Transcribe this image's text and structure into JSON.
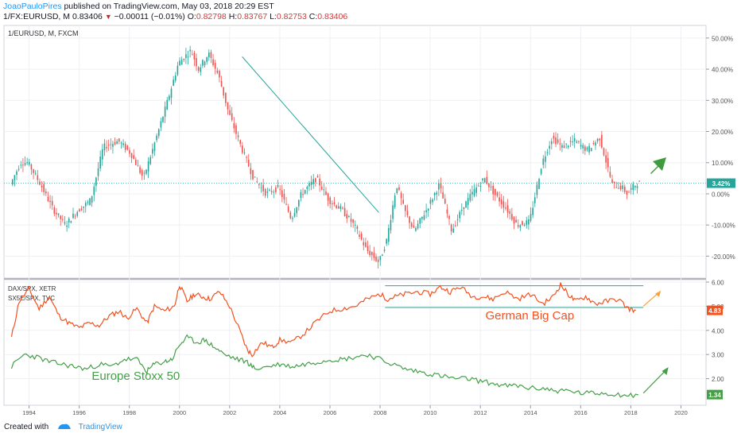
{
  "header": {
    "author": "JoaoPauloPires",
    "published": "published on TradingView.com, May 03, 2018 20:29 EST",
    "symbol": "1/FX:EURUSD, M",
    "last": "0.83406",
    "change": "−0.00011 (−0.01%)",
    "o_label": "O:",
    "o_value": "0.82798",
    "h_label": "H:",
    "h_value": "0.83767",
    "l_label": "L:",
    "l_value": "0.82753",
    "c_label": "C:",
    "c_value": "0.83406"
  },
  "footer": {
    "created_with": "Created with",
    "brand": "TradingView"
  },
  "colors": {
    "up": "#26a69a",
    "down": "#ef5350",
    "dax": "#f4511e",
    "sx5e": "#43a047",
    "trend": "#26a69a",
    "arrow_up": "#3e9b3e",
    "arrow_orange": "#f7a23b",
    "arrow_green": "#43a047",
    "grid": "#eef0f3",
    "axis_text": "#555555"
  },
  "chart_data": [
    {
      "type": "candlestick",
      "title": "1/EURUSD, M, FXCM",
      "x": [
        1993.3,
        1993.7,
        1994.0,
        1994.5,
        1995.0,
        1995.5,
        1995.9,
        1996.5,
        1997.0,
        1997.6,
        1998.1,
        1998.6,
        1999.0,
        1999.5,
        2000.0,
        2000.5,
        2000.8,
        2001.2,
        2001.6,
        2002.0,
        2002.5,
        2003.0,
        2003.5,
        2004.0,
        2004.5,
        2004.9,
        2005.5,
        2006.0,
        2006.5,
        2007.0,
        2007.5,
        2008.0,
        2008.3,
        2008.7,
        2009.0,
        2009.4,
        2009.9,
        2010.4,
        2010.9,
        2011.3,
        2011.7,
        2012.2,
        2012.6,
        2013.1,
        2013.5,
        2014.0,
        2014.5,
        2014.9,
        2015.3,
        2015.8,
        2016.3,
        2016.8,
        2017.0,
        2017.3,
        2017.7,
        2017.9,
        2018.1,
        2018.3
      ],
      "y_pct": [
        3,
        10,
        10,
        3,
        -5,
        -10,
        -6,
        -2,
        15,
        17,
        13,
        5,
        15,
        28,
        42,
        46,
        40,
        45,
        38,
        26,
        15,
        5,
        0,
        2,
        -8,
        0,
        5,
        -2,
        -5,
        -10,
        -18,
        -22,
        -15,
        3,
        -5,
        -12,
        -5,
        3,
        -12,
        -5,
        0,
        5,
        0,
        -5,
        -10,
        -9,
        10,
        18,
        15,
        17,
        14,
        18,
        12,
        3,
        2,
        0,
        2,
        3.42
      ],
      "ylim_pct": [
        -25,
        52
      ],
      "y_ticks": [
        "50.00%",
        "40.00%",
        "30.00%",
        "20.00%",
        "10.00%",
        "0.00%",
        "-10.00%",
        "-20.00%"
      ],
      "last_label": "3.42%"
    },
    {
      "type": "line",
      "legend": [
        "DAX/SPX, XETR",
        "SX5E/SPX, TVC"
      ],
      "x_ticks": [
        "1994",
        "1996",
        "1998",
        "2000",
        "2002",
        "2004",
        "2006",
        "2008",
        "2010",
        "2012",
        "2014",
        "2016",
        "2018",
        "2020"
      ],
      "y_ticks": [
        "6.00",
        "5.00",
        "4.00",
        "3.00",
        "2.00"
      ],
      "ylim": [
        0.9,
        6.1
      ],
      "series": [
        {
          "name": "DAX/SPX, XETR",
          "x": [
            1993.3,
            1993.6,
            1994.0,
            1994.4,
            1994.8,
            1995.2,
            1995.6,
            1996.0,
            1996.4,
            1996.8,
            1997.2,
            1997.6,
            1997.9,
            1998.3,
            1998.7,
            1999.0,
            1999.4,
            1999.8,
            2000.0,
            2000.3,
            2000.6,
            2000.9,
            2001.2,
            2001.6,
            2002.0,
            2002.4,
            2002.7,
            2002.9,
            2003.3,
            2003.7,
            2004.0,
            2004.5,
            2005.0,
            2005.5,
            2006.0,
            2006.5,
            2007.0,
            2007.5,
            2008.0,
            2008.3,
            2008.6,
            2009.0,
            2009.5,
            2010.0,
            2010.4,
            2010.8,
            2011.2,
            2011.7,
            2012.1,
            2012.5,
            2013.0,
            2013.5,
            2014.0,
            2014.5,
            2014.9,
            2015.2,
            2015.5,
            2015.8,
            2016.2,
            2016.6,
            2017.0,
            2017.5,
            2017.9,
            2018.2
          ],
          "values": [
            3.7,
            5.2,
            5.7,
            4.9,
            5.4,
            4.6,
            4.3,
            4.1,
            4.3,
            4.2,
            4.6,
            4.8,
            4.5,
            4.9,
            4.3,
            5.0,
            4.8,
            5.0,
            5.9,
            5.2,
            5.5,
            5.4,
            5.3,
            5.6,
            5.0,
            4.0,
            3.2,
            3.0,
            3.5,
            3.3,
            3.6,
            3.5,
            3.9,
            4.4,
            4.8,
            4.9,
            5.0,
            5.3,
            5.5,
            5.3,
            5.4,
            5.5,
            5.6,
            5.5,
            5.8,
            5.6,
            5.8,
            5.4,
            5.4,
            5.3,
            5.6,
            5.3,
            5.5,
            5.1,
            5.4,
            5.9,
            5.5,
            5.2,
            5.4,
            5.1,
            5.2,
            5.3,
            4.9,
            4.83
          ],
          "last_label": "4.83"
        },
        {
          "name": "SX5E/SPX, TVC",
          "x": [
            1993.3,
            1993.8,
            1994.3,
            1994.8,
            1995.3,
            1995.8,
            1996.3,
            1996.8,
            1997.3,
            1997.8,
            1998.3,
            1998.7,
            1999.0,
            1999.4,
            1999.7,
            2000.0,
            2000.3,
            2000.7,
            2001.0,
            2001.4,
            2001.8,
            2002.3,
            2002.7,
            2003.0,
            2003.5,
            2004.0,
            2004.5,
            2005.0,
            2005.5,
            2006.0,
            2006.5,
            2007.0,
            2007.5,
            2008.0,
            2008.5,
            2009.0,
            2009.5,
            2010.0,
            2010.5,
            2011.0,
            2011.5,
            2012.0,
            2012.5,
            2013.0,
            2013.5,
            2014.0,
            2014.5,
            2015.0,
            2015.5,
            2016.0,
            2016.5,
            2017.0,
            2017.5,
            2018.0,
            2018.3
          ],
          "values": [
            2.5,
            3.0,
            2.9,
            2.7,
            2.6,
            2.5,
            2.4,
            2.6,
            2.5,
            2.8,
            2.8,
            2.3,
            2.6,
            2.7,
            2.8,
            3.4,
            3.7,
            3.5,
            3.6,
            3.3,
            3.0,
            2.8,
            2.7,
            2.4,
            2.5,
            2.6,
            2.5,
            2.6,
            2.7,
            2.8,
            2.8,
            2.9,
            3.0,
            2.8,
            2.6,
            2.4,
            2.3,
            2.2,
            2.1,
            2.0,
            2.0,
            1.9,
            1.8,
            1.7,
            1.7,
            1.6,
            1.6,
            1.5,
            1.5,
            1.4,
            1.4,
            1.4,
            1.35,
            1.3,
            1.34
          ],
          "last_label": "1.34"
        }
      ],
      "annotations": [
        "German Big Cap",
        "Europe Stoxx 50"
      ]
    }
  ]
}
